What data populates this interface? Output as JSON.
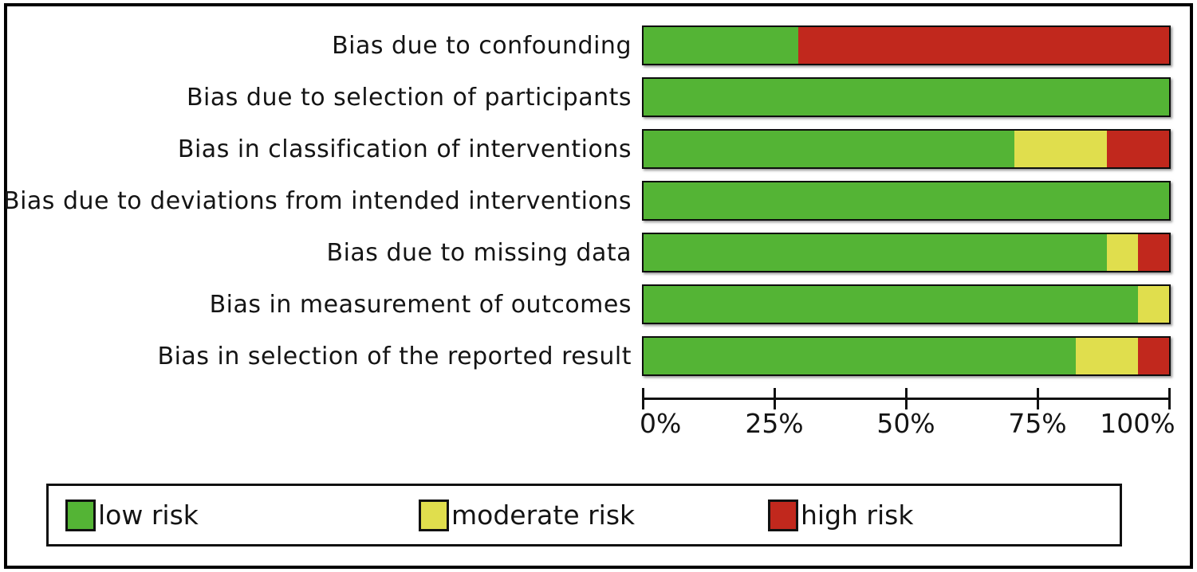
{
  "figure": {
    "kind": "risk-of-bias summary (ROBINS-I style) stacked bar figure",
    "background_color": "#ffffff",
    "frame_color": "#000000"
  },
  "chart_data": {
    "type": "bar",
    "subtype": "horizontal_stacked_percentage",
    "title": "",
    "xlabel": "",
    "ylabel": "",
    "xlim": [
      0,
      100
    ],
    "grid": false,
    "categories": [
      "Bias due to confounding",
      "Bias due to selection of participants",
      "Bias in classification of interventions",
      "Bias due to deviations from intended interventions",
      "Bias due to missing data",
      "Bias in measurement of outcomes",
      "Bias in selection of the reported result"
    ],
    "series": [
      {
        "name": "low risk",
        "color": "#54B435",
        "values": [
          29.4,
          100,
          70.6,
          100,
          88.2,
          94.1,
          82.4
        ]
      },
      {
        "name": "moderate risk",
        "color": "#E0DE4D",
        "values": [
          0,
          0,
          17.6,
          0,
          5.9,
          5.9,
          11.8
        ]
      },
      {
        "name": "high risk",
        "color": "#C1281D",
        "values": [
          70.6,
          0,
          11.8,
          0,
          5.9,
          0,
          5.9
        ]
      }
    ],
    "x_ticks": [
      {
        "label": "0%",
        "value": 0
      },
      {
        "label": "25%",
        "value": 25
      },
      {
        "label": "50%",
        "value": 50
      },
      {
        "label": "75%",
        "value": 75
      },
      {
        "label": "100%",
        "value": 100
      }
    ],
    "legend": {
      "position": "bottom",
      "items": [
        {
          "label": "low risk",
          "color": "#54B435"
        },
        {
          "label": "moderate risk",
          "color": "#E0DE4D"
        },
        {
          "label": "high risk",
          "color": "#C1281D"
        }
      ]
    }
  },
  "layout_values": {
    "bar_top_start": 32,
    "bar_pitch": 65,
    "legend_item_offsets": [
      21,
      464,
      902
    ]
  }
}
